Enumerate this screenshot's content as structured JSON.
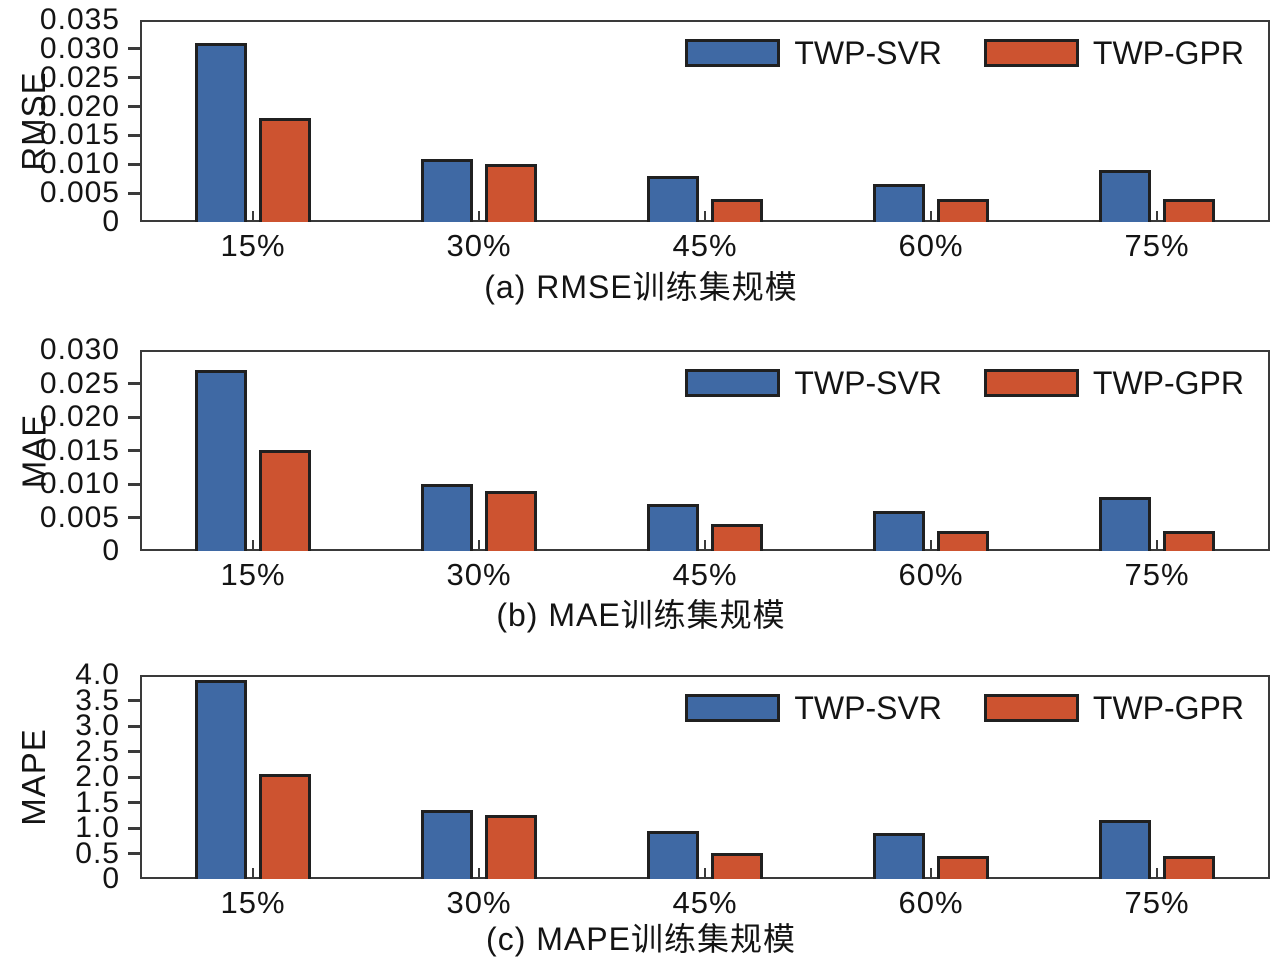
{
  "figure": {
    "background": "#ffffff",
    "text_color": "#141414",
    "axis_color": "#3a3a3a",
    "bar_border_color": "#202020",
    "series_colors": {
      "TWP-SVR": "#3f69a4",
      "TWP-GPR": "#cd5330"
    }
  },
  "chart_data": [
    {
      "id": "a",
      "type": "bar",
      "caption": "(a) RMSE训练集规模",
      "ylabel": "RMSE",
      "xlabel": "",
      "categories": [
        "15%",
        "30%",
        "45%",
        "60%",
        "75%"
      ],
      "series": [
        {
          "name": "TWP-SVR",
          "values": [
            0.031,
            0.011,
            0.008,
            0.0065,
            0.009
          ]
        },
        {
          "name": "TWP-GPR",
          "values": [
            0.018,
            0.01,
            0.004,
            0.004,
            0.004
          ]
        }
      ],
      "ylim": [
        0,
        0.035
      ],
      "yticks": [
        {
          "value": 0.035,
          "label": "0.035"
        },
        {
          "value": 0.03,
          "label": "0.030"
        },
        {
          "value": 0.025,
          "label": "0.025"
        },
        {
          "value": 0.02,
          "label": "0.020"
        },
        {
          "value": 0.015,
          "label": "0.015"
        },
        {
          "value": 0.01,
          "label": "0.010"
        },
        {
          "value": 0.005,
          "label": "0.005"
        },
        {
          "value": 0,
          "label": "0"
        }
      ],
      "legend": [
        "TWP-SVR",
        "TWP-GPR"
      ],
      "legend_position": "top-right",
      "grid": false
    },
    {
      "id": "b",
      "type": "bar",
      "caption": "(b) MAE训练集规模",
      "ylabel": "MAE",
      "xlabel": "",
      "categories": [
        "15%",
        "30%",
        "45%",
        "60%",
        "75%"
      ],
      "series": [
        {
          "name": "TWP-SVR",
          "values": [
            0.027,
            0.01,
            0.007,
            0.006,
            0.008
          ]
        },
        {
          "name": "TWP-GPR",
          "values": [
            0.015,
            0.009,
            0.004,
            0.003,
            0.003
          ]
        }
      ],
      "ylim": [
        0,
        0.03
      ],
      "yticks": [
        {
          "value": 0.03,
          "label": "0.030"
        },
        {
          "value": 0.025,
          "label": "0.025"
        },
        {
          "value": 0.02,
          "label": "0.020"
        },
        {
          "value": 0.015,
          "label": "0.015"
        },
        {
          "value": 0.01,
          "label": "0.010"
        },
        {
          "value": 0.005,
          "label": "0.005"
        },
        {
          "value": 0,
          "label": "0"
        }
      ],
      "legend": [
        "TWP-SVR",
        "TWP-GPR"
      ],
      "legend_position": "top-right",
      "grid": false
    },
    {
      "id": "c",
      "type": "bar",
      "caption": "(c) MAPE训练集规模",
      "ylabel": "MAPE",
      "xlabel": "",
      "categories": [
        "15%",
        "30%",
        "45%",
        "60%",
        "75%"
      ],
      "series": [
        {
          "name": "TWP-SVR",
          "values": [
            3.9,
            1.35,
            0.95,
            0.9,
            1.15
          ]
        },
        {
          "name": "TWP-GPR",
          "values": [
            2.05,
            1.25,
            0.5,
            0.45,
            0.45
          ]
        }
      ],
      "ylim": [
        0,
        4.0
      ],
      "yticks": [
        {
          "value": 4.0,
          "label": "4.0"
        },
        {
          "value": 3.5,
          "label": "3.5"
        },
        {
          "value": 3.0,
          "label": "3.0"
        },
        {
          "value": 2.5,
          "label": "2.5"
        },
        {
          "value": 2.0,
          "label": "2.0"
        },
        {
          "value": 1.5,
          "label": "1.5"
        },
        {
          "value": 1.0,
          "label": "1.0"
        },
        {
          "value": 0.5,
          "label": "0.5"
        },
        {
          "value": 0,
          "label": "0"
        }
      ],
      "legend": [
        "TWP-SVR",
        "TWP-GPR"
      ],
      "legend_position": "top-right",
      "grid": false
    }
  ]
}
